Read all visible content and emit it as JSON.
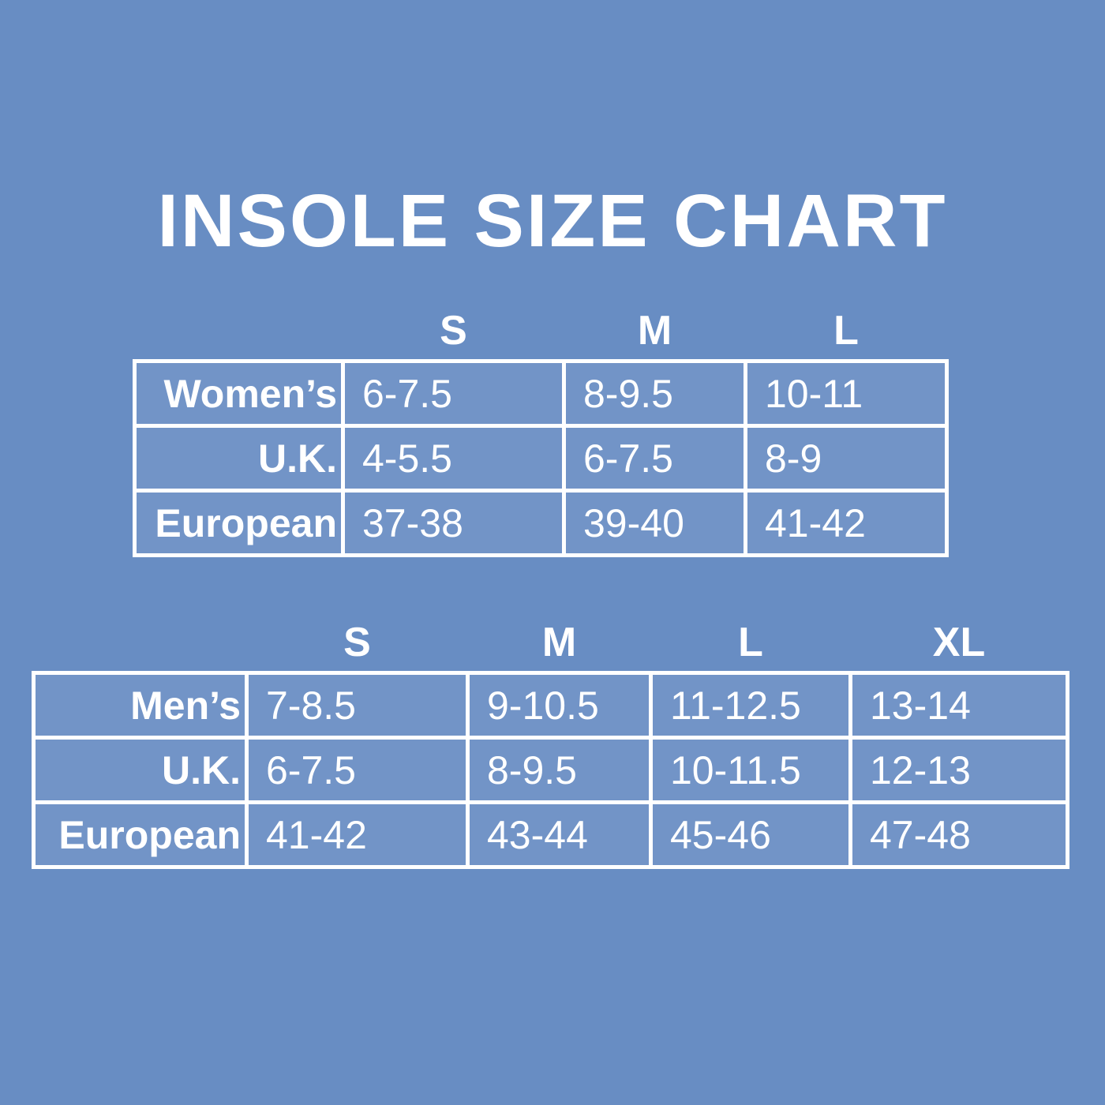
{
  "title": "INSOLE SIZE CHART",
  "colors": {
    "background": "#688dc3",
    "cell_fill": "#7294c7",
    "table_lines": "#ffffff",
    "text": "#ffffff"
  },
  "chart_data": [
    {
      "type": "table",
      "name": "womens-sizes",
      "size_headers": [
        "S",
        "M",
        "L"
      ],
      "rows": [
        {
          "label": "Women’s",
          "values": [
            "6-7.5",
            "8-9.5",
            "10-11"
          ]
        },
        {
          "label": "U.K.",
          "values": [
            "4-5.5",
            "6-7.5",
            "8-9"
          ]
        },
        {
          "label": "European",
          "values": [
            "37-38",
            "39-40",
            "41-42"
          ]
        }
      ]
    },
    {
      "type": "table",
      "name": "mens-sizes",
      "size_headers": [
        "S",
        "M",
        "L",
        "XL"
      ],
      "rows": [
        {
          "label": "Men’s",
          "values": [
            "7-8.5",
            "9-10.5",
            "11-12.5",
            "13-14"
          ]
        },
        {
          "label": "U.K.",
          "values": [
            "6-7.5",
            "8-9.5",
            "10-11.5",
            "12-13"
          ]
        },
        {
          "label": "European",
          "values": [
            "41-42",
            "43-44",
            "45-46",
            "47-48"
          ]
        }
      ]
    }
  ]
}
